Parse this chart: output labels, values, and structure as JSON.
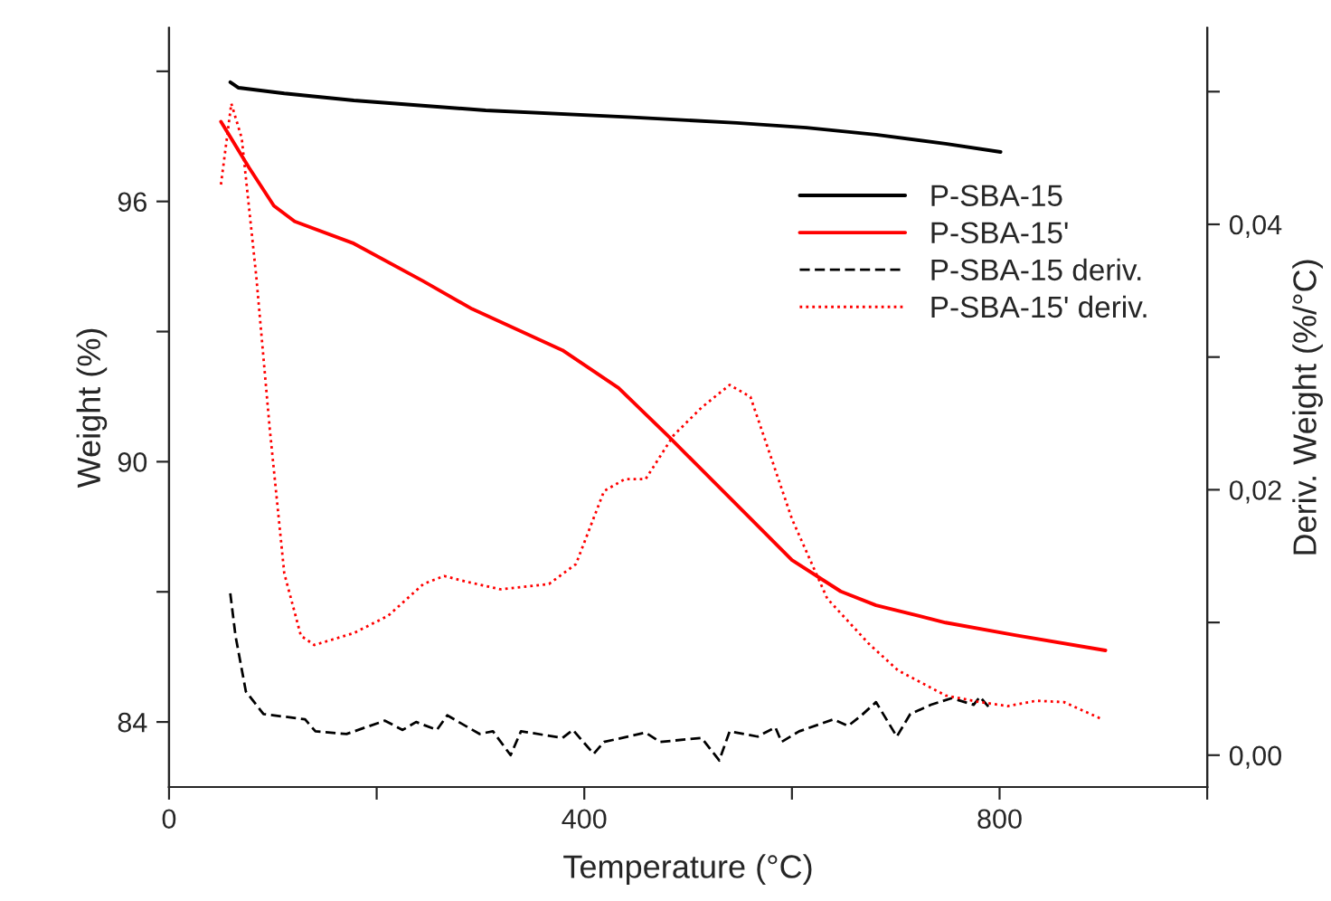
{
  "chart_data": {
    "type": "line",
    "xlabel": "Temperature (°C)",
    "ylabel": "Weight (%)",
    "y2label": "Deriv. Weight (%/°C)",
    "xlim": [
      0,
      1000
    ],
    "xticks": [
      0,
      {
        "value": 200,
        "label": null
      },
      400,
      {
        "value": 600,
        "label": null
      },
      800,
      {
        "value": 1000,
        "label": null
      }
    ],
    "ylim": [
      82.5,
      100
    ],
    "yticks": [
      84,
      {
        "value": 87,
        "label": null
      },
      90,
      {
        "value": 93,
        "label": null
      },
      96,
      {
        "value": 99,
        "label": null
      }
    ],
    "y2lim": [
      -0.0024,
      0.0548
    ],
    "y2ticks": [
      {
        "value": 0,
        "label": "0,00"
      },
      {
        "value": 0.01,
        "label": null
      },
      {
        "value": 0.02,
        "label": "0,02"
      },
      {
        "value": 0.03,
        "label": null
      },
      {
        "value": 0.04,
        "label": "0,04"
      },
      {
        "value": 0.05,
        "label": null
      }
    ],
    "grid": false,
    "legend": "top right",
    "marker": "none",
    "series": [
      {
        "name": "P-SBA-15",
        "color": "#000000",
        "line_style": "solid",
        "x": [
          59,
          67,
          111,
          178,
          305,
          446,
          547,
          614,
          681,
          748,
          801
        ],
        "values": [
          98.75,
          98.62,
          98.49,
          98.33,
          98.1,
          97.94,
          97.81,
          97.7,
          97.54,
          97.33,
          97.14
        ]
      },
      {
        "name": "P-SBA-15'",
        "color": "#ff0000",
        "line_style": "solid",
        "x": [
          50,
          77,
          101,
          121,
          178,
          245,
          292,
          379,
          433,
          480,
          540,
          600,
          647,
          681,
          748,
          815,
          902
        ],
        "values": [
          97.84,
          96.78,
          95.9,
          95.54,
          95.03,
          94.16,
          93.52,
          92.57,
          91.7,
          90.61,
          89.17,
          87.73,
          87.01,
          86.69,
          86.29,
          86.0,
          85.65
        ]
      },
      {
        "name": "P-SBA-15 deriv.",
        "color": "#000000",
        "line_style": "dashed",
        "axis": "y2",
        "x": [
          59,
          64,
          74,
          91,
          131,
          141,
          171,
          208,
          225,
          238,
          258,
          268,
          299,
          312,
          329,
          339,
          379,
          389,
          409,
          419,
          459,
          473,
          513,
          530,
          540,
          567,
          584,
          590,
          607,
          640,
          654,
          667,
          681,
          701,
          714,
          734,
          754,
          775,
          781,
          791
        ],
        "values": [
          0.0122,
          0.009,
          0.0048,
          0.0031,
          0.0027,
          0.0018,
          0.0016,
          0.0026,
          0.0019,
          0.0025,
          0.0019,
          0.003,
          0.0016,
          0.0018,
          0.0,
          0.0018,
          0.0013,
          0.0019,
          0.0001,
          0.001,
          0.0017,
          0.001,
          0.0013,
          -0.0004,
          0.0018,
          0.0014,
          0.0021,
          0.001,
          0.0018,
          0.0027,
          0.0022,
          0.003,
          0.004,
          0.0014,
          0.0031,
          0.0038,
          0.0043,
          0.0038,
          0.0044,
          0.0035
        ]
      },
      {
        "name": "P-SBA-15' deriv.",
        "color": "#ff0000",
        "line_style": "dotted",
        "axis": "y2",
        "x": [
          50,
          60,
          70,
          84,
          97,
          111,
          127,
          140,
          178,
          211,
          245,
          265,
          285,
          319,
          366,
          392,
          419,
          439,
          459,
          486,
          513,
          540,
          560,
          577,
          600,
          634,
          674,
          702,
          748,
          781,
          808,
          835,
          862,
          899
        ],
        "values": [
          0.043,
          0.0491,
          0.0465,
          0.0361,
          0.0246,
          0.0137,
          0.009,
          0.0083,
          0.0092,
          0.0105,
          0.0129,
          0.0135,
          0.0131,
          0.0125,
          0.0129,
          0.0144,
          0.0199,
          0.0208,
          0.0208,
          0.0241,
          0.0262,
          0.0279,
          0.027,
          0.0231,
          0.0178,
          0.0118,
          0.0084,
          0.0064,
          0.0045,
          0.004,
          0.0037,
          0.0041,
          0.004,
          0.0027
        ]
      }
    ]
  }
}
